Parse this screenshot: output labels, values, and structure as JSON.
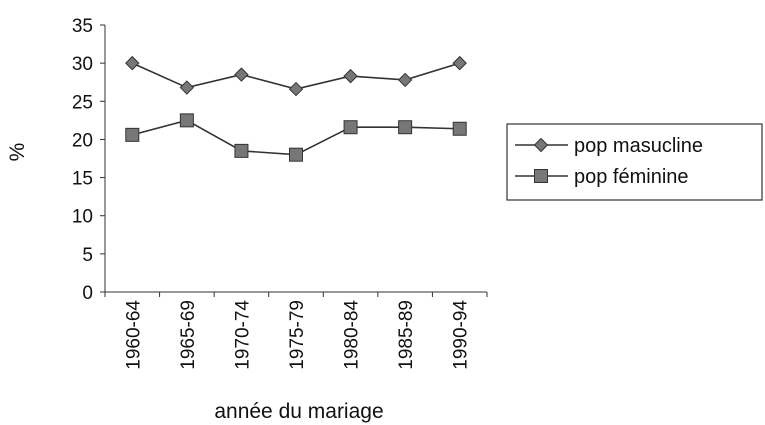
{
  "chart_data": {
    "type": "line",
    "title": "",
    "xlabel": "année du mariage",
    "ylabel": "%",
    "categories": [
      "1960-64",
      "1965-69",
      "1970-74",
      "1975-79",
      "1980-84",
      "1985-89",
      "1990-94"
    ],
    "ylim": [
      0,
      35
    ],
    "yticks": [
      0,
      5,
      10,
      15,
      20,
      25,
      30,
      35
    ],
    "grid": false,
    "legend_position": "right",
    "series": [
      {
        "name": "pop masucline",
        "marker": "diamond",
        "color": "#555555",
        "values": [
          30,
          26.8,
          28.5,
          26.6,
          28.3,
          27.8,
          30
        ]
      },
      {
        "name": "pop féminine",
        "marker": "square",
        "color": "#555555",
        "values": [
          20.6,
          22.5,
          18.5,
          18,
          21.6,
          21.6,
          21.4
        ]
      }
    ]
  }
}
